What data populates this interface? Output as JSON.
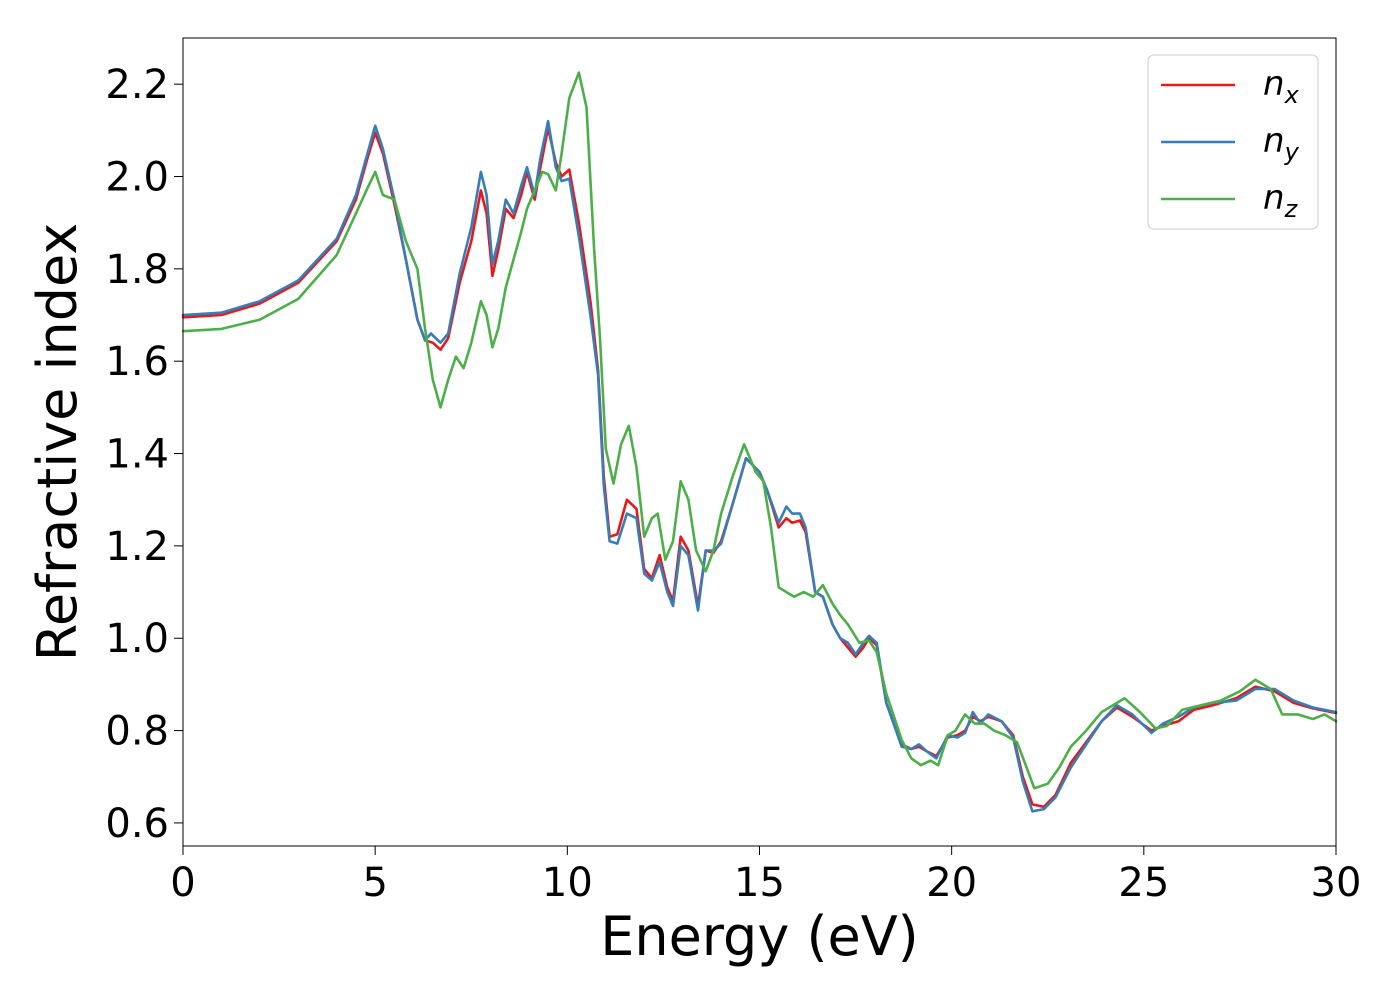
{
  "chart_data": {
    "type": "line",
    "xlabel": "Energy (eV)",
    "ylabel": "Refractive index",
    "xlim": [
      0,
      30
    ],
    "ylim": [
      0.55,
      2.3
    ],
    "xticks": [
      0,
      5,
      10,
      15,
      20,
      25,
      30
    ],
    "xtick_labels": [
      "0",
      "5",
      "10",
      "15",
      "20",
      "25",
      "30"
    ],
    "yticks": [
      0.6,
      0.8,
      1.0,
      1.2,
      1.4,
      1.6,
      1.8,
      2.0,
      2.2
    ],
    "ytick_labels": [
      "0.6",
      "0.8",
      "1.0",
      "1.2",
      "1.4",
      "1.6",
      "1.8",
      "2.0",
      "2.2"
    ],
    "grid": false,
    "legend_position": "top-right",
    "series": [
      {
        "name": "n_x",
        "label_base": "n",
        "label_sub": "x",
        "color": "#e41a1c",
        "points": [
          [
            0,
            1.695
          ],
          [
            1,
            1.7
          ],
          [
            2,
            1.725
          ],
          [
            3,
            1.77
          ],
          [
            4,
            1.86
          ],
          [
            4.5,
            1.95
          ],
          [
            4.8,
            2.04
          ],
          [
            5.0,
            2.095
          ],
          [
            5.2,
            2.05
          ],
          [
            5.5,
            1.94
          ],
          [
            5.8,
            1.82
          ],
          [
            6.1,
            1.69
          ],
          [
            6.3,
            1.645
          ],
          [
            6.5,
            1.64
          ],
          [
            6.7,
            1.625
          ],
          [
            6.9,
            1.65
          ],
          [
            7.2,
            1.77
          ],
          [
            7.5,
            1.86
          ],
          [
            7.75,
            1.97
          ],
          [
            7.9,
            1.92
          ],
          [
            8.05,
            1.785
          ],
          [
            8.2,
            1.84
          ],
          [
            8.4,
            1.93
          ],
          [
            8.6,
            1.91
          ],
          [
            8.8,
            1.96
          ],
          [
            8.95,
            2.01
          ],
          [
            9.15,
            1.95
          ],
          [
            9.3,
            2.02
          ],
          [
            9.5,
            2.105
          ],
          [
            9.7,
            2.03
          ],
          [
            9.85,
            2.0
          ],
          [
            10.05,
            2.015
          ],
          [
            10.3,
            1.9
          ],
          [
            10.6,
            1.73
          ],
          [
            10.8,
            1.58
          ],
          [
            10.95,
            1.35
          ],
          [
            11.1,
            1.22
          ],
          [
            11.3,
            1.225
          ],
          [
            11.55,
            1.3
          ],
          [
            11.8,
            1.28
          ],
          [
            12.0,
            1.15
          ],
          [
            12.2,
            1.13
          ],
          [
            12.4,
            1.18
          ],
          [
            12.6,
            1.11
          ],
          [
            12.75,
            1.08
          ],
          [
            12.95,
            1.22
          ],
          [
            13.15,
            1.19
          ],
          [
            13.4,
            1.07
          ],
          [
            13.6,
            1.19
          ],
          [
            13.8,
            1.185
          ],
          [
            14.0,
            1.21
          ],
          [
            14.3,
            1.29
          ],
          [
            14.65,
            1.39
          ],
          [
            15.0,
            1.36
          ],
          [
            15.2,
            1.32
          ],
          [
            15.5,
            1.24
          ],
          [
            15.7,
            1.26
          ],
          [
            15.85,
            1.25
          ],
          [
            16.05,
            1.255
          ],
          [
            16.2,
            1.23
          ],
          [
            16.45,
            1.1
          ],
          [
            16.65,
            1.09
          ],
          [
            16.9,
            1.03
          ],
          [
            17.1,
            1.0
          ],
          [
            17.3,
            0.98
          ],
          [
            17.5,
            0.96
          ],
          [
            17.7,
            0.98
          ],
          [
            17.85,
            1.0
          ],
          [
            18.05,
            0.985
          ],
          [
            18.3,
            0.86
          ],
          [
            18.7,
            0.77
          ],
          [
            18.95,
            0.76
          ],
          [
            19.15,
            0.765
          ],
          [
            19.35,
            0.755
          ],
          [
            19.6,
            0.745
          ],
          [
            19.9,
            0.785
          ],
          [
            20.15,
            0.79
          ],
          [
            20.35,
            0.8
          ],
          [
            20.55,
            0.83
          ],
          [
            20.75,
            0.82
          ],
          [
            20.95,
            0.83
          ],
          [
            21.3,
            0.82
          ],
          [
            21.6,
            0.79
          ],
          [
            21.85,
            0.7
          ],
          [
            22.1,
            0.64
          ],
          [
            22.4,
            0.635
          ],
          [
            22.7,
            0.66
          ],
          [
            23.1,
            0.73
          ],
          [
            23.5,
            0.775
          ],
          [
            23.9,
            0.82
          ],
          [
            24.3,
            0.85
          ],
          [
            24.7,
            0.83
          ],
          [
            25.2,
            0.8
          ],
          [
            25.5,
            0.81
          ],
          [
            25.9,
            0.82
          ],
          [
            26.3,
            0.845
          ],
          [
            26.8,
            0.855
          ],
          [
            27.4,
            0.87
          ],
          [
            27.9,
            0.895
          ],
          [
            28.4,
            0.885
          ],
          [
            28.9,
            0.86
          ],
          [
            29.4,
            0.848
          ],
          [
            30,
            0.838
          ]
        ]
      },
      {
        "name": "n_y",
        "label_base": "n",
        "label_sub": "y",
        "color": "#377eb8",
        "points": [
          [
            0,
            1.7
          ],
          [
            1,
            1.705
          ],
          [
            2,
            1.73
          ],
          [
            3,
            1.775
          ],
          [
            4,
            1.865
          ],
          [
            4.5,
            1.96
          ],
          [
            4.8,
            2.05
          ],
          [
            5.0,
            2.11
          ],
          [
            5.2,
            2.06
          ],
          [
            5.5,
            1.95
          ],
          [
            5.8,
            1.82
          ],
          [
            6.1,
            1.69
          ],
          [
            6.3,
            1.645
          ],
          [
            6.45,
            1.66
          ],
          [
            6.7,
            1.64
          ],
          [
            6.9,
            1.66
          ],
          [
            7.2,
            1.79
          ],
          [
            7.5,
            1.89
          ],
          [
            7.75,
            2.01
          ],
          [
            7.9,
            1.96
          ],
          [
            8.05,
            1.81
          ],
          [
            8.2,
            1.86
          ],
          [
            8.4,
            1.95
          ],
          [
            8.6,
            1.92
          ],
          [
            8.8,
            1.98
          ],
          [
            8.95,
            2.02
          ],
          [
            9.15,
            1.96
          ],
          [
            9.3,
            2.04
          ],
          [
            9.5,
            2.12
          ],
          [
            9.7,
            2.02
          ],
          [
            9.85,
            1.99
          ],
          [
            10.05,
            1.995
          ],
          [
            10.3,
            1.87
          ],
          [
            10.6,
            1.7
          ],
          [
            10.8,
            1.57
          ],
          [
            10.95,
            1.33
          ],
          [
            11.1,
            1.21
          ],
          [
            11.3,
            1.205
          ],
          [
            11.55,
            1.27
          ],
          [
            11.8,
            1.26
          ],
          [
            12.0,
            1.14
          ],
          [
            12.2,
            1.125
          ],
          [
            12.4,
            1.165
          ],
          [
            12.6,
            1.1
          ],
          [
            12.75,
            1.07
          ],
          [
            12.95,
            1.2
          ],
          [
            13.15,
            1.18
          ],
          [
            13.4,
            1.06
          ],
          [
            13.6,
            1.19
          ],
          [
            13.8,
            1.19
          ],
          [
            14.0,
            1.205
          ],
          [
            14.3,
            1.29
          ],
          [
            14.65,
            1.39
          ],
          [
            15.0,
            1.36
          ],
          [
            15.2,
            1.32
          ],
          [
            15.5,
            1.25
          ],
          [
            15.7,
            1.285
          ],
          [
            15.85,
            1.27
          ],
          [
            16.05,
            1.27
          ],
          [
            16.2,
            1.24
          ],
          [
            16.45,
            1.1
          ],
          [
            16.65,
            1.09
          ],
          [
            16.9,
            1.03
          ],
          [
            17.1,
            1.0
          ],
          [
            17.3,
            0.99
          ],
          [
            17.5,
            0.965
          ],
          [
            17.7,
            0.99
          ],
          [
            17.85,
            1.005
          ],
          [
            18.05,
            0.99
          ],
          [
            18.3,
            0.86
          ],
          [
            18.7,
            0.765
          ],
          [
            18.95,
            0.76
          ],
          [
            19.15,
            0.77
          ],
          [
            19.35,
            0.755
          ],
          [
            19.6,
            0.74
          ],
          [
            19.9,
            0.79
          ],
          [
            20.15,
            0.785
          ],
          [
            20.35,
            0.795
          ],
          [
            20.55,
            0.84
          ],
          [
            20.75,
            0.815
          ],
          [
            20.95,
            0.835
          ],
          [
            21.3,
            0.82
          ],
          [
            21.6,
            0.785
          ],
          [
            21.85,
            0.69
          ],
          [
            22.1,
            0.625
          ],
          [
            22.4,
            0.63
          ],
          [
            22.7,
            0.655
          ],
          [
            23.1,
            0.72
          ],
          [
            23.5,
            0.77
          ],
          [
            23.9,
            0.82
          ],
          [
            24.3,
            0.855
          ],
          [
            24.7,
            0.835
          ],
          [
            25.2,
            0.795
          ],
          [
            25.5,
            0.815
          ],
          [
            25.9,
            0.83
          ],
          [
            26.3,
            0.85
          ],
          [
            26.8,
            0.86
          ],
          [
            27.4,
            0.865
          ],
          [
            27.9,
            0.89
          ],
          [
            28.4,
            0.89
          ],
          [
            28.9,
            0.865
          ],
          [
            29.4,
            0.85
          ],
          [
            30,
            0.84
          ]
        ]
      },
      {
        "name": "n_z",
        "label_base": "n",
        "label_sub": "z",
        "color": "#4daf4a",
        "points": [
          [
            0,
            1.665
          ],
          [
            1,
            1.67
          ],
          [
            2,
            1.69
          ],
          [
            3,
            1.735
          ],
          [
            4,
            1.83
          ],
          [
            4.5,
            1.92
          ],
          [
            4.8,
            1.975
          ],
          [
            5.0,
            2.01
          ],
          [
            5.2,
            1.96
          ],
          [
            5.5,
            1.95
          ],
          [
            5.8,
            1.86
          ],
          [
            6.1,
            1.8
          ],
          [
            6.3,
            1.67
          ],
          [
            6.5,
            1.56
          ],
          [
            6.7,
            1.5
          ],
          [
            6.9,
            1.56
          ],
          [
            7.1,
            1.61
          ],
          [
            7.3,
            1.585
          ],
          [
            7.5,
            1.64
          ],
          [
            7.75,
            1.73
          ],
          [
            7.9,
            1.7
          ],
          [
            8.05,
            1.63
          ],
          [
            8.2,
            1.67
          ],
          [
            8.4,
            1.76
          ],
          [
            8.6,
            1.82
          ],
          [
            8.8,
            1.88
          ],
          [
            8.95,
            1.93
          ],
          [
            9.15,
            1.97
          ],
          [
            9.35,
            2.01
          ],
          [
            9.5,
            2.005
          ],
          [
            9.7,
            1.97
          ],
          [
            9.85,
            2.05
          ],
          [
            10.05,
            2.17
          ],
          [
            10.3,
            2.225
          ],
          [
            10.5,
            2.15
          ],
          [
            10.7,
            1.84
          ],
          [
            10.85,
            1.65
          ],
          [
            11.0,
            1.41
          ],
          [
            11.2,
            1.335
          ],
          [
            11.4,
            1.42
          ],
          [
            11.6,
            1.46
          ],
          [
            11.8,
            1.37
          ],
          [
            12.0,
            1.22
          ],
          [
            12.2,
            1.26
          ],
          [
            12.35,
            1.27
          ],
          [
            12.55,
            1.17
          ],
          [
            12.75,
            1.21
          ],
          [
            12.95,
            1.34
          ],
          [
            13.15,
            1.3
          ],
          [
            13.35,
            1.19
          ],
          [
            13.6,
            1.145
          ],
          [
            13.8,
            1.19
          ],
          [
            14.0,
            1.27
          ],
          [
            14.3,
            1.35
          ],
          [
            14.6,
            1.42
          ],
          [
            14.9,
            1.36
          ],
          [
            15.1,
            1.34
          ],
          [
            15.3,
            1.24
          ],
          [
            15.5,
            1.11
          ],
          [
            15.7,
            1.1
          ],
          [
            15.9,
            1.09
          ],
          [
            16.15,
            1.1
          ],
          [
            16.4,
            1.09
          ],
          [
            16.65,
            1.115
          ],
          [
            16.9,
            1.075
          ],
          [
            17.1,
            1.05
          ],
          [
            17.3,
            1.03
          ],
          [
            17.6,
            0.99
          ],
          [
            17.85,
            0.995
          ],
          [
            18.05,
            0.97
          ],
          [
            18.3,
            0.88
          ],
          [
            18.7,
            0.78
          ],
          [
            18.95,
            0.74
          ],
          [
            19.2,
            0.725
          ],
          [
            19.45,
            0.735
          ],
          [
            19.65,
            0.725
          ],
          [
            19.9,
            0.79
          ],
          [
            20.1,
            0.8
          ],
          [
            20.35,
            0.835
          ],
          [
            20.6,
            0.815
          ],
          [
            20.85,
            0.815
          ],
          [
            21.1,
            0.8
          ],
          [
            21.4,
            0.79
          ],
          [
            21.7,
            0.775
          ],
          [
            21.95,
            0.72
          ],
          [
            22.15,
            0.675
          ],
          [
            22.5,
            0.685
          ],
          [
            22.8,
            0.72
          ],
          [
            23.1,
            0.765
          ],
          [
            23.5,
            0.8
          ],
          [
            23.9,
            0.84
          ],
          [
            24.5,
            0.87
          ],
          [
            24.9,
            0.84
          ],
          [
            25.3,
            0.805
          ],
          [
            25.6,
            0.81
          ],
          [
            26.0,
            0.845
          ],
          [
            26.5,
            0.855
          ],
          [
            27.0,
            0.865
          ],
          [
            27.5,
            0.885
          ],
          [
            27.9,
            0.91
          ],
          [
            28.3,
            0.89
          ],
          [
            28.6,
            0.835
          ],
          [
            29.0,
            0.835
          ],
          [
            29.4,
            0.825
          ],
          [
            29.7,
            0.835
          ],
          [
            30,
            0.82
          ]
        ]
      }
    ]
  }
}
